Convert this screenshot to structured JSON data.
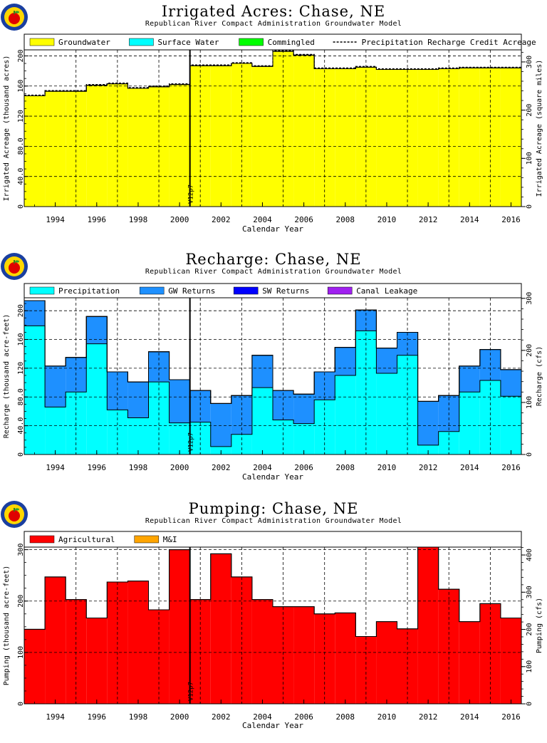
{
  "colors": {
    "groundwater": "#ffff00",
    "surface_water": "#00ffff",
    "commingled": "#00ff00",
    "gw_returns": "#1e90ff",
    "sw_returns": "#0000ff",
    "canal_leakage": "#a020f0",
    "agricultural": "#ff0000",
    "mi": "#ffa500",
    "logo_ring": "#1a3fa0",
    "logo_center": "#ffd700",
    "logo_apple": "#e00000"
  },
  "marker_label": "V12p7",
  "charts": [
    {
      "key": "irrigated",
      "title": "Irrigated Acres: Chase, NE",
      "subtitle": "Republican River Compact Administration Groundwater Model",
      "chart_data": {
        "type": "bar",
        "stacked": true,
        "x": [
          1993,
          1994,
          1995,
          1996,
          1997,
          1998,
          1999,
          2000,
          2001,
          2002,
          2003,
          2004,
          2005,
          2006,
          2007,
          2008,
          2009,
          2010,
          2011,
          2012,
          2013,
          2014,
          2015,
          2016
        ],
        "xlim": [
          1992.5,
          2016.5
        ],
        "x_tick_labels": [
          "1994",
          "1996",
          "1998",
          "2000",
          "2002",
          "2004",
          "2006",
          "2008",
          "2010",
          "2012",
          "2014",
          "2016"
        ],
        "xlabel": "Calendar Year",
        "ylabel": "Irrigated Acreage (thousand acres)",
        "ylim": [
          0,
          208
        ],
        "y_ticks": [
          0,
          40,
          80,
          120,
          160,
          200
        ],
        "y_tick_labels": [
          "0",
          "40.0",
          "80.0",
          "120",
          "160",
          "200"
        ],
        "y2label": "Irrigated Acreage (square miles)",
        "y2_ticks": [
          0,
          100,
          200,
          300
        ],
        "y2_factor": 1.5625,
        "series": [
          {
            "name": "Groundwater",
            "color_key": "groundwater",
            "values": [
              147,
              153,
              153,
              161,
              163,
              157,
              159,
              162,
              187,
              187,
              190,
              186,
              206,
              201,
              183,
              183,
              185,
              182,
              182,
              182,
              183,
              184,
              184,
              184
            ]
          },
          {
            "name": "Surface Water",
            "color_key": "surface_water",
            "values": [
              0,
              0,
              0,
              0,
              0,
              0,
              0,
              0,
              0,
              0,
              0,
              0,
              0,
              0,
              0,
              0,
              0,
              0,
              0,
              0,
              0,
              0,
              0,
              0
            ]
          },
          {
            "name": "Commingled",
            "color_key": "commingled",
            "values": [
              0,
              0,
              0,
              0,
              0,
              0,
              0,
              0,
              0,
              0,
              0,
              0,
              0,
              0,
              0,
              0,
              0,
              0,
              0,
              0,
              0,
              0,
              0,
              0
            ]
          }
        ],
        "overlay_line": {
          "name": "Precipitation Recharge Credit Acreage",
          "values": [
            148,
            154,
            154,
            162,
            164,
            158,
            160,
            163,
            188,
            188,
            191,
            187,
            207,
            202,
            184,
            184,
            186,
            183,
            183,
            183,
            184,
            185,
            185,
            185
          ]
        },
        "marker_year": 2000.5,
        "grid": true,
        "legend_placement": "top"
      }
    },
    {
      "key": "recharge",
      "title": "Recharge: Chase, NE",
      "subtitle": "Republican River Compact Administration Groundwater Model",
      "chart_data": {
        "type": "bar",
        "stacked": true,
        "x": [
          1993,
          1994,
          1995,
          1996,
          1997,
          1998,
          1999,
          2000,
          2001,
          2002,
          2003,
          2004,
          2005,
          2006,
          2007,
          2008,
          2009,
          2010,
          2011,
          2012,
          2013,
          2014,
          2015,
          2016
        ],
        "xlim": [
          1992.5,
          2016.5
        ],
        "x_tick_labels": [
          "1994",
          "1996",
          "1998",
          "2000",
          "2002",
          "2004",
          "2006",
          "2008",
          "2010",
          "2012",
          "2014",
          "2016"
        ],
        "xlabel": "Calendar Year",
        "ylabel": "Recharge (thousand acre-feet)",
        "ylim": [
          0,
          218
        ],
        "y_ticks": [
          0,
          40,
          80,
          120,
          160,
          200
        ],
        "y_tick_labels": [
          "0",
          "40.0",
          "80.0",
          "120",
          "160",
          "200"
        ],
        "y2label": "Recharge (cfs)",
        "y2_ticks": [
          0,
          100,
          200,
          300
        ],
        "y2_factor": 1.381,
        "series": [
          {
            "name": "Precipitation",
            "color_key": "surface_water",
            "values": [
              179,
              66,
              87,
              154,
              62,
              51,
              101,
              44,
              45,
              11,
              28,
              93,
              48,
              43,
              76,
              110,
              172,
              113,
              138,
              13,
              32,
              87,
              103,
              81
            ]
          },
          {
            "name": "GW Returns",
            "color_key": "gw_returns",
            "values": [
              35,
              57,
              48,
              38,
              53,
              50,
              42,
              60,
              44,
              60,
              54,
              45,
              41,
              41,
              39,
              39,
              29,
              35,
              32,
              61,
              50,
              36,
              43,
              37
            ]
          },
          {
            "name": "SW Returns",
            "color_key": "sw_returns",
            "values": [
              0,
              0,
              0,
              0,
              0,
              0,
              0,
              0,
              0,
              0,
              0,
              0,
              0,
              0,
              0,
              0,
              0,
              0,
              0,
              0,
              0,
              0,
              0,
              0
            ]
          },
          {
            "name": "Canal Leakage",
            "color_key": "canal_leakage",
            "values": [
              0,
              0,
              0,
              0,
              0,
              0,
              0,
              0,
              0,
              0,
              0,
              0,
              0,
              0,
              0,
              0,
              0,
              0,
              0,
              0,
              0,
              0,
              0,
              0
            ]
          }
        ],
        "marker_year": 2000.5,
        "grid": true,
        "legend_placement": "top"
      }
    },
    {
      "key": "pumping",
      "title": "Pumping: Chase, NE",
      "subtitle": "Republican River Compact Administration Groundwater Model",
      "chart_data": {
        "type": "bar",
        "stacked": true,
        "x": [
          1993,
          1994,
          1995,
          1996,
          1997,
          1998,
          1999,
          2000,
          2001,
          2002,
          2003,
          2004,
          2005,
          2006,
          2007,
          2008,
          2009,
          2010,
          2011,
          2012,
          2013,
          2014,
          2015,
          2016
        ],
        "xlim": [
          1992.5,
          2016.5
        ],
        "x_tick_labels": [
          "1994",
          "1996",
          "1998",
          "2000",
          "2002",
          "2004",
          "2006",
          "2008",
          "2010",
          "2012",
          "2014",
          "2016"
        ],
        "xlabel": "Calendar Year",
        "ylabel": "Pumping (thousand acre-feet)",
        "ylim": [
          0,
          305
        ],
        "y_ticks": [
          0,
          100,
          200,
          300
        ],
        "y_tick_labels": [
          "0",
          "100",
          "200",
          "300"
        ],
        "y2label": "Pumping (cfs)",
        "y2_ticks": [
          0,
          100,
          200,
          300,
          400
        ],
        "y2_factor": 1.381,
        "series": [
          {
            "name": "Agricultural",
            "color_key": "agricultural",
            "values": [
              145,
              247,
              203,
              167,
              237,
              239,
              183,
              300,
              203,
              292,
              247,
              203,
              189,
              189,
              175,
              177,
              131,
              160,
              146,
              305,
              223,
              160,
              195,
              167
            ]
          },
          {
            "name": "M&I",
            "color_key": "mi",
            "values": [
              0,
              0,
              0,
              0,
              0,
              0,
              0,
              0,
              0,
              0,
              0,
              0,
              0,
              0,
              0,
              0,
              0,
              0,
              0,
              0,
              0,
              0,
              0,
              0
            ]
          }
        ],
        "marker_year": 2000.5,
        "grid": true,
        "legend_placement": "top"
      }
    }
  ]
}
